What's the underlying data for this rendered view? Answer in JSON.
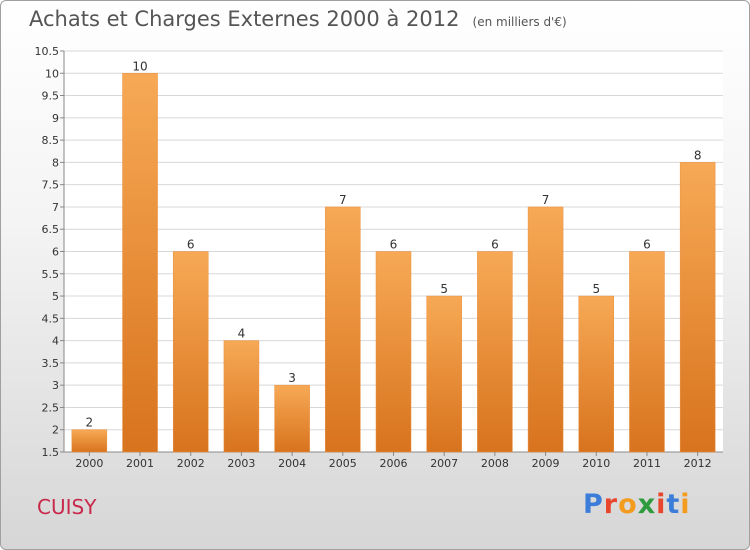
{
  "title": "Achats et Charges Externes 2000 à 2012",
  "unit": "(en milliers d'€)",
  "place": "CUISY",
  "brand": {
    "text": "Proxiti",
    "letter_colors": [
      "#3b7dd8",
      "#e8462c",
      "#f39c1f",
      "#2e9b3e",
      "#e8462c",
      "#3b7dd8",
      "#f39c1f"
    ]
  },
  "colors": {
    "bar_top": "#f7a955",
    "bar_bottom": "#d8731e",
    "grid": "#d8d8d8",
    "axis": "#888888"
  },
  "chart_data": {
    "type": "bar",
    "categories": [
      "2000",
      "2001",
      "2002",
      "2003",
      "2004",
      "2005",
      "2006",
      "2007",
      "2008",
      "2009",
      "2010",
      "2011",
      "2012"
    ],
    "values": [
      2,
      10,
      6,
      4,
      3,
      7,
      6,
      5,
      6,
      7,
      5,
      6,
      8
    ],
    "ylim": [
      1.5,
      10.5
    ],
    "yticks": [
      "1.5",
      "2",
      "2.5",
      "3",
      "3.5",
      "4",
      "4.5",
      "5",
      "5.5",
      "6",
      "6.5",
      "7",
      "7.5",
      "8",
      "8.5",
      "9",
      "9.5",
      "10",
      "10.5"
    ],
    "grid": true,
    "xlabel": "",
    "ylabel": ""
  }
}
